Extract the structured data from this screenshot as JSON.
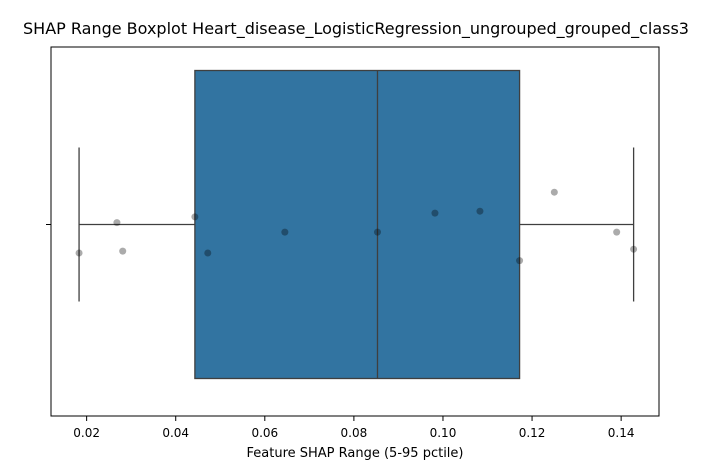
{
  "chart_data": {
    "type": "boxplot",
    "title": "SHAP Range Boxplot Heart_disease_LogisticRegression_ungrouped_grouped_class3",
    "xlabel": "Feature SHAP Range (5-95 pctile)",
    "ylabel": "",
    "xlim": [
      0.012,
      0.1485
    ],
    "xticks": [
      0.02,
      0.04,
      0.06,
      0.08,
      0.1,
      0.12,
      0.14
    ],
    "xtick_labels": [
      "0.02",
      "0.04",
      "0.06",
      "0.08",
      "0.10",
      "0.12",
      "0.14"
    ],
    "box": {
      "whisker_low": 0.0183,
      "q1": 0.0443,
      "median": 0.0853,
      "q3": 0.1172,
      "whisker_high": 0.1428
    },
    "points": [
      {
        "x": 0.0183,
        "jitter": -0.15
      },
      {
        "x": 0.0268,
        "jitter": 0.01
      },
      {
        "x": 0.0281,
        "jitter": -0.14
      },
      {
        "x": 0.0443,
        "jitter": 0.04
      },
      {
        "x": 0.0472,
        "jitter": -0.15
      },
      {
        "x": 0.0645,
        "jitter": -0.04
      },
      {
        "x": 0.0853,
        "jitter": -0.04
      },
      {
        "x": 0.0982,
        "jitter": 0.06
      },
      {
        "x": 0.1083,
        "jitter": 0.07
      },
      {
        "x": 0.1172,
        "jitter": -0.19
      },
      {
        "x": 0.125,
        "jitter": 0.17
      },
      {
        "x": 0.139,
        "jitter": -0.04
      },
      {
        "x": 0.1428,
        "jitter": -0.13
      }
    ],
    "colors": {
      "box": "#3274a1",
      "lines": "#3f3f3f",
      "points": "#000000",
      "axes": "#000000"
    },
    "grid": false
  }
}
